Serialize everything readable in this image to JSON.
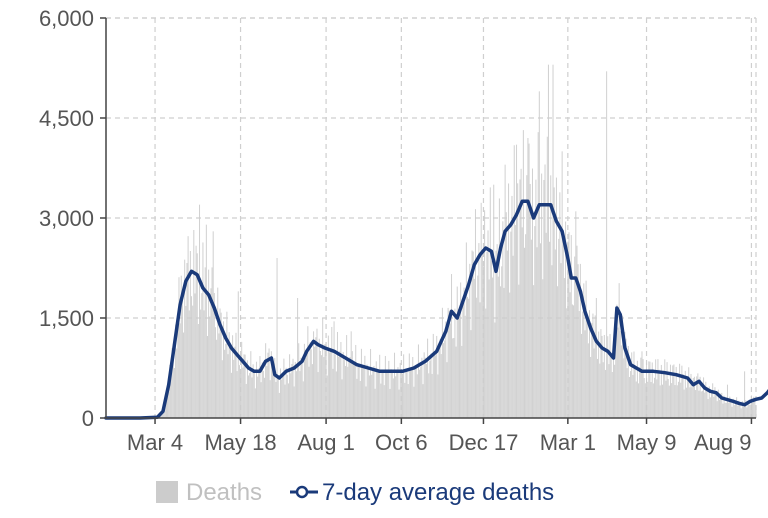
{
  "chart_data": {
    "type": "bar",
    "x_axis": {
      "tick_labels": [
        "Mar 4",
        "May 18",
        "Aug 1",
        "Oct 6",
        "Dec 17",
        "Mar 1",
        "May 9",
        "Aug 9"
      ],
      "tick_days": [
        43,
        118,
        193,
        259,
        331,
        405,
        474,
        566
      ],
      "range_days": [
        0,
        570
      ]
    },
    "y_axis": {
      "tick_labels": [
        "0",
        "1,500",
        "3,000",
        "4,500",
        "6,000"
      ],
      "ticks": [
        0,
        1500,
        3000,
        4500,
        6000
      ],
      "ylim": [
        0,
        6000
      ]
    },
    "grid": true,
    "legend": {
      "placement": "bottom",
      "items": [
        {
          "label": "Deaths",
          "color": "#cccccc",
          "marker": "square"
        },
        {
          "label": "7-day average deaths",
          "color": "#1a3a7a",
          "marker": "line-circle"
        }
      ]
    },
    "series": [
      {
        "name": "Deaths",
        "kind": "bar",
        "color": "#cccccc",
        "daily_spikes": [
          [
            82,
            3200
          ],
          [
            88,
            2900
          ],
          [
            94,
            2800
          ],
          [
            116,
            1900
          ],
          [
            150,
            2400
          ],
          [
            168,
            1800
          ],
          [
            182,
            1300
          ],
          [
            190,
            1500
          ],
          [
            200,
            1450
          ],
          [
            215,
            1300
          ],
          [
            305,
            1200
          ],
          [
            330,
            2500
          ],
          [
            340,
            3500
          ],
          [
            350,
            3800
          ],
          [
            360,
            4100
          ],
          [
            370,
            4200
          ],
          [
            380,
            4900
          ],
          [
            388,
            5300
          ],
          [
            392,
            5300
          ],
          [
            400,
            4000
          ],
          [
            412,
            3100
          ],
          [
            430,
            1800
          ],
          [
            439,
            5200
          ],
          [
            448,
            1700
          ],
          [
            470,
            1000
          ],
          [
            495,
            800
          ],
          [
            515,
            600
          ],
          [
            545,
            500
          ],
          [
            560,
            700
          ]
        ]
      },
      {
        "name": "7-day average deaths",
        "kind": "line",
        "color": "#1a3a7a",
        "points": [
          [
            0,
            0
          ],
          [
            30,
            0
          ],
          [
            45,
            10
          ],
          [
            50,
            100
          ],
          [
            55,
            500
          ],
          [
            60,
            1100
          ],
          [
            65,
            1700
          ],
          [
            70,
            2050
          ],
          [
            75,
            2200
          ],
          [
            80,
            2150
          ],
          [
            85,
            1950
          ],
          [
            90,
            1850
          ],
          [
            95,
            1650
          ],
          [
            100,
            1400
          ],
          [
            105,
            1200
          ],
          [
            110,
            1050
          ],
          [
            115,
            950
          ],
          [
            120,
            850
          ],
          [
            125,
            750
          ],
          [
            130,
            700
          ],
          [
            135,
            700
          ],
          [
            140,
            850
          ],
          [
            145,
            900
          ],
          [
            148,
            650
          ],
          [
            152,
            600
          ],
          [
            158,
            700
          ],
          [
            165,
            750
          ],
          [
            172,
            850
          ],
          [
            176,
            1000
          ],
          [
            182,
            1150
          ],
          [
            186,
            1100
          ],
          [
            192,
            1050
          ],
          [
            200,
            1000
          ],
          [
            210,
            900
          ],
          [
            220,
            800
          ],
          [
            230,
            750
          ],
          [
            240,
            700
          ],
          [
            250,
            700
          ],
          [
            260,
            700
          ],
          [
            270,
            750
          ],
          [
            280,
            850
          ],
          [
            290,
            1000
          ],
          [
            298,
            1300
          ],
          [
            303,
            1600
          ],
          [
            308,
            1500
          ],
          [
            313,
            1750
          ],
          [
            318,
            2000
          ],
          [
            323,
            2300
          ],
          [
            328,
            2450
          ],
          [
            333,
            2550
          ],
          [
            338,
            2500
          ],
          [
            342,
            2200
          ],
          [
            346,
            2550
          ],
          [
            350,
            2800
          ],
          [
            355,
            2900
          ],
          [
            360,
            3050
          ],
          [
            365,
            3250
          ],
          [
            370,
            3250
          ],
          [
            375,
            3000
          ],
          [
            380,
            3200
          ],
          [
            385,
            3200
          ],
          [
            390,
            3200
          ],
          [
            395,
            2950
          ],
          [
            400,
            2800
          ],
          [
            405,
            2400
          ],
          [
            408,
            2100
          ],
          [
            412,
            2100
          ],
          [
            416,
            1900
          ],
          [
            420,
            1600
          ],
          [
            425,
            1350
          ],
          [
            430,
            1150
          ],
          [
            435,
            1050
          ],
          [
            440,
            1000
          ],
          [
            445,
            900
          ],
          [
            448,
            1650
          ],
          [
            451,
            1550
          ],
          [
            455,
            1050
          ],
          [
            460,
            800
          ],
          [
            470,
            700
          ],
          [
            480,
            700
          ],
          [
            490,
            680
          ],
          [
            500,
            650
          ],
          [
            510,
            600
          ],
          [
            515,
            500
          ],
          [
            520,
            550
          ],
          [
            525,
            450
          ],
          [
            530,
            400
          ],
          [
            535,
            380
          ],
          [
            540,
            300
          ],
          [
            550,
            250
          ],
          [
            555,
            220
          ],
          [
            560,
            200
          ],
          [
            565,
            250
          ],
          [
            570,
            280
          ],
          [
            575,
            300
          ],
          [
            580,
            380
          ],
          [
            584,
            470
          ],
          [
            588,
            520
          ],
          [
            590,
            500
          ]
        ]
      }
    ]
  }
}
